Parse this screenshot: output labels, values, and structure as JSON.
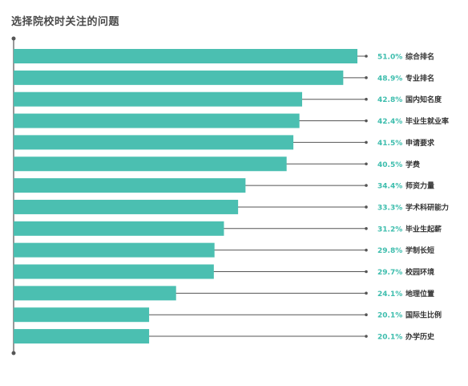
{
  "chart_data": {
    "type": "bar",
    "orientation": "horizontal",
    "title": "选择院校时关注的问题",
    "categories": [
      "综合排名",
      "专业排名",
      "国内知名度",
      "毕业生就业率",
      "申请要求",
      "学费",
      "师资力量",
      "学术科研能力",
      "毕业生起薪",
      "学制长短",
      "校园环境",
      "地理位置",
      "国际生比例",
      "办学历史"
    ],
    "values": [
      51.0,
      48.9,
      42.8,
      42.4,
      41.5,
      40.5,
      34.4,
      33.3,
      31.2,
      29.8,
      29.7,
      24.1,
      20.1,
      20.1
    ],
    "value_labels": [
      "51.0%",
      "48.9%",
      "42.8%",
      "42.4%",
      "41.5%",
      "40.5%",
      "34.4%",
      "33.3%",
      "31.2%",
      "29.8%",
      "29.7%",
      "24.1%",
      "20.1%",
      "20.1%"
    ],
    "unit": "%",
    "xlim": [
      0,
      51
    ],
    "grid": false,
    "legend": "none",
    "colors": {
      "bar": "#4bbfb1",
      "value_label": "#3dbdad",
      "axis": "#555555",
      "leader_line": "#555555"
    }
  }
}
